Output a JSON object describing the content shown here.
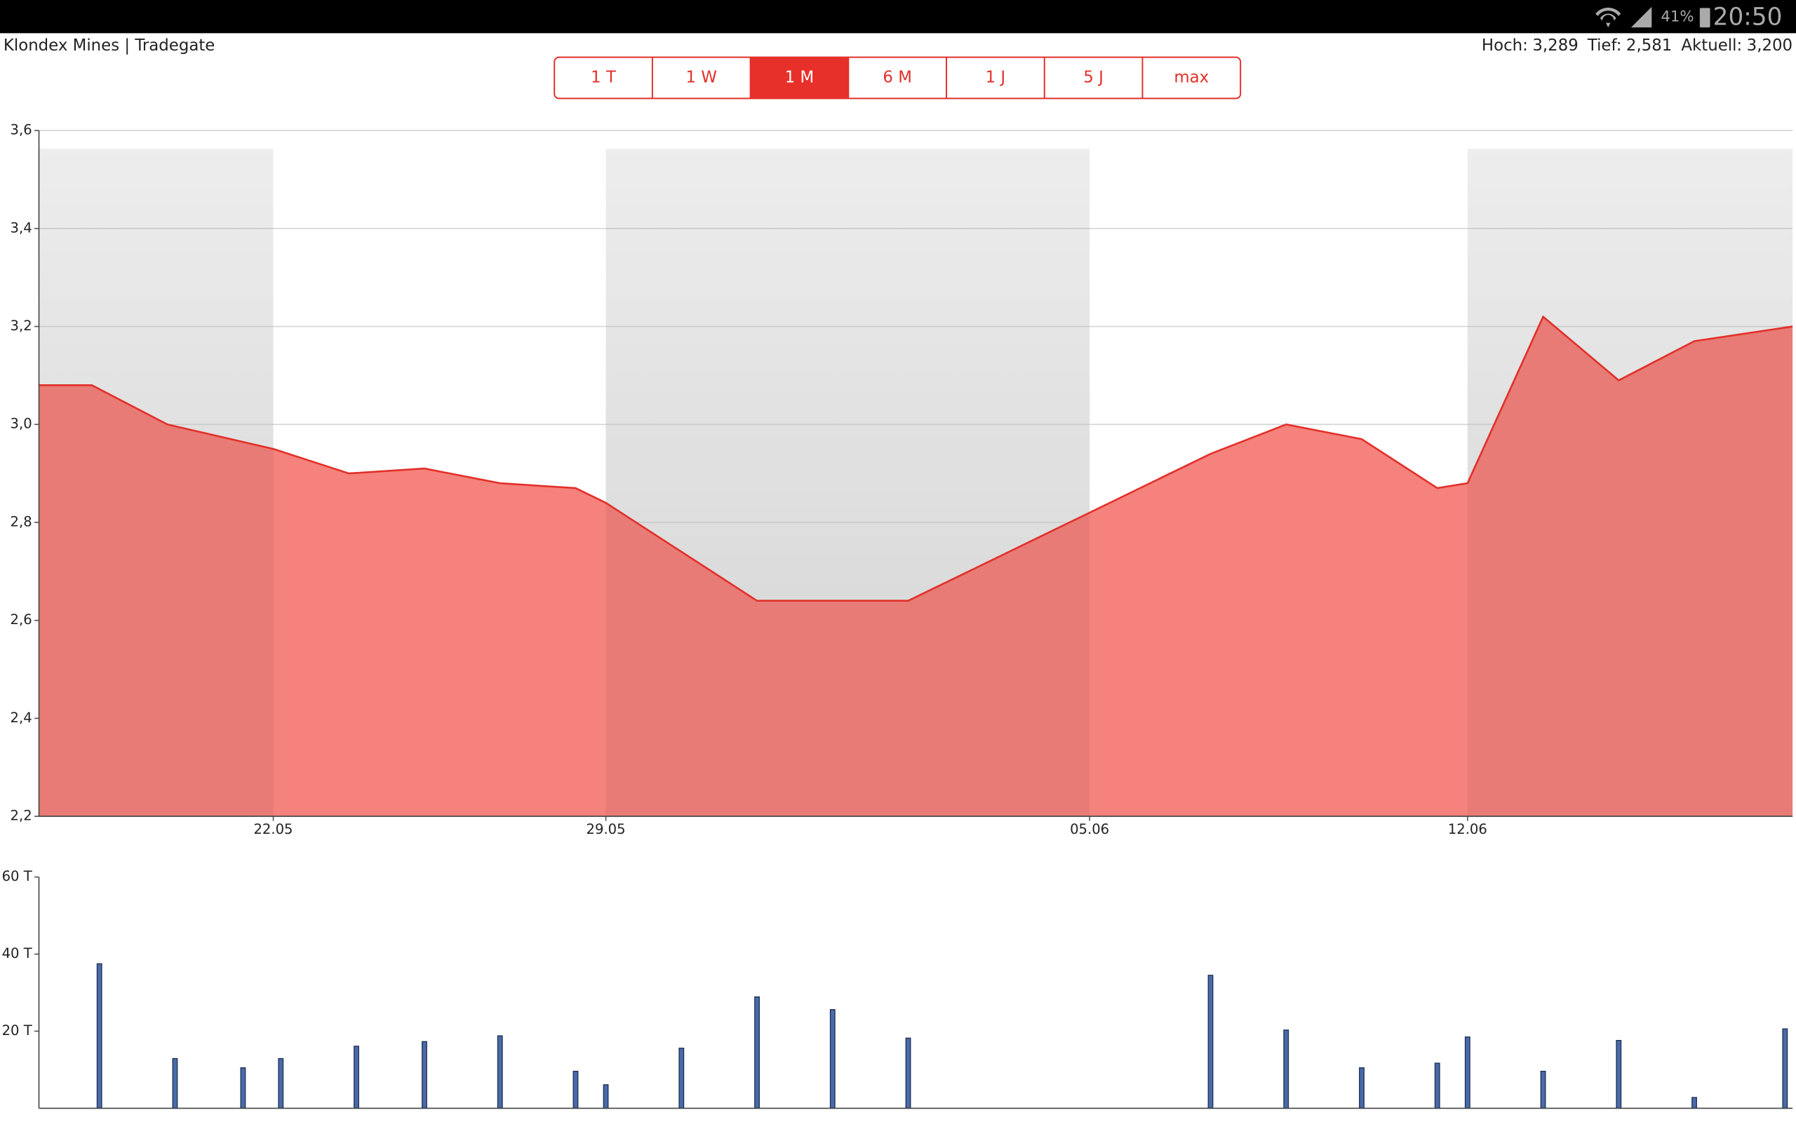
{
  "status_bar": {
    "battery": "41%",
    "time": "20:50"
  },
  "header": {
    "title": "Klondex Mines | Tradegate",
    "stats": [
      "Hoch:",
      "3,289",
      "Tief:",
      "2,581",
      "Aktuell:",
      "3,200"
    ]
  },
  "tabs": {
    "items": [
      "1 T",
      "1 W",
      "1 M",
      "6 M",
      "1 J",
      "5 J",
      "max"
    ],
    "selected": 2
  },
  "chart_data": [
    {
      "type": "area",
      "color": "#f5827c",
      "line_color": "#e2302a",
      "x": [
        0,
        0.7,
        1.7,
        3.1,
        4.1,
        5.1,
        6.1,
        7.1,
        7.5,
        9.5,
        10.5,
        11.5,
        15.5,
        16.5,
        17.5,
        18.5,
        18.9,
        19.9,
        20.9,
        21.9,
        23.2
      ],
      "values": [
        3.08,
        3.08,
        3.0,
        2.95,
        2.9,
        2.91,
        2.88,
        2.87,
        2.84,
        2.64,
        2.64,
        2.64,
        2.94,
        3.0,
        2.97,
        2.87,
        2.88,
        3.22,
        3.09,
        3.17,
        3.2
      ],
      "xlim": [
        0,
        23.2
      ],
      "xticks": [
        {
          "value": 3.1,
          "label": "22.05"
        },
        {
          "value": 7.5,
          "label": "29.05"
        },
        {
          "value": 13.9,
          "label": "05.06"
        },
        {
          "value": 18.9,
          "label": "12.06"
        }
      ],
      "ylim": [
        2.2,
        3.6
      ],
      "yticks": [
        {
          "value": 2.2,
          "label": "2,2"
        },
        {
          "value": 2.4,
          "label": "2,4"
        },
        {
          "value": 2.6,
          "label": "2,6"
        },
        {
          "value": 2.8,
          "label": "2,8"
        },
        {
          "value": 3.0,
          "label": "3,0"
        },
        {
          "value": 3.2,
          "label": "3,2"
        },
        {
          "value": 3.4,
          "label": "3,4"
        },
        {
          "value": 3.6,
          "label": "3,6"
        }
      ],
      "grid": true
    },
    {
      "type": "bar",
      "color": "#4a6aa8",
      "x": [
        0.8,
        1.8,
        2.7,
        3.2,
        4.2,
        5.1,
        6.1,
        7.1,
        7.5,
        8.5,
        9.5,
        10.5,
        11.5,
        15.5,
        16.5,
        17.5,
        18.5,
        18.9,
        19.9,
        20.9,
        21.9,
        23.1
      ],
      "values": [
        37.5,
        12.9,
        10.5,
        12.9,
        16.1,
        17.3,
        18.8,
        9.6,
        6.1,
        15.6,
        28.9,
        25.6,
        18.2,
        34.5,
        20.3,
        10.5,
        11.7,
        18.5,
        9.6,
        17.6,
        2.8,
        20.6
      ],
      "xlim": [
        0,
        23.2
      ],
      "ylim": [
        0,
        60
      ],
      "yticks": [
        {
          "value": 20,
          "label": "20 T"
        },
        {
          "value": 40,
          "label": "40 T"
        },
        {
          "value": 60,
          "label": "60 T"
        }
      ],
      "grid": false
    }
  ]
}
